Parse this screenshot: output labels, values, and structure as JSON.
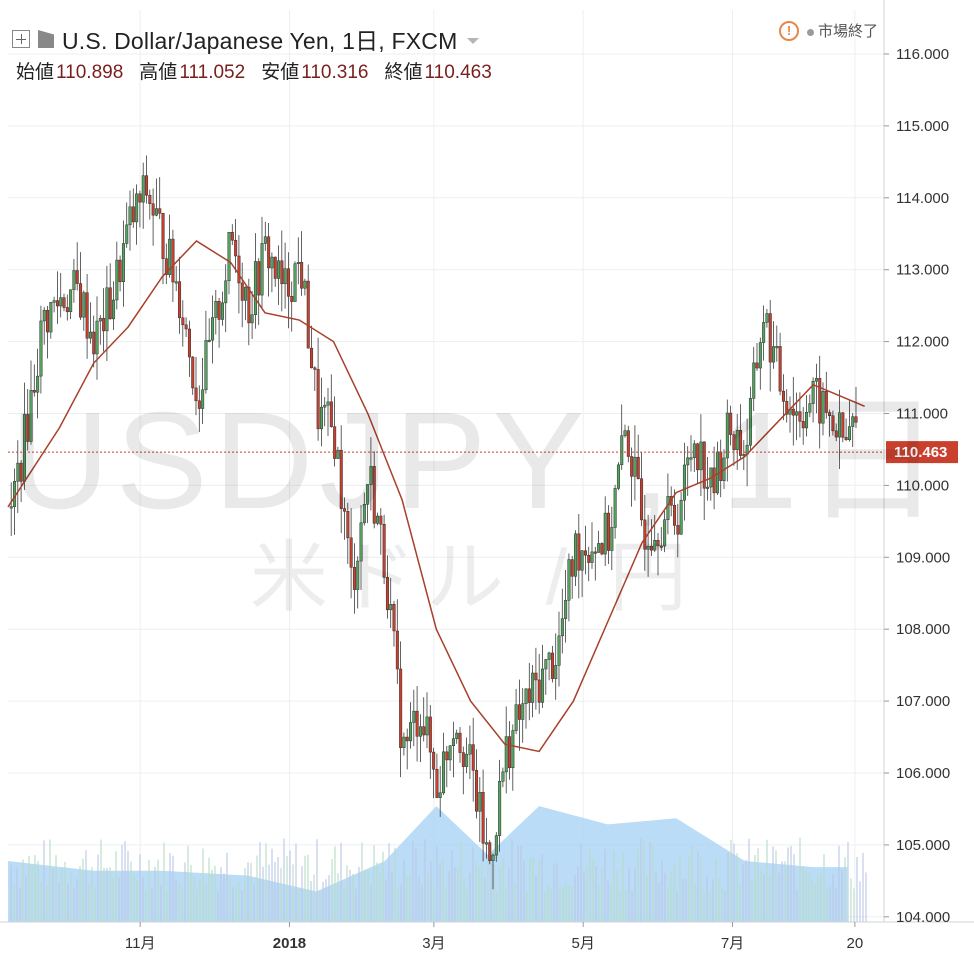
{
  "header": {
    "title": "U.S. Dollar/Japanese Yen, 1日, FXCM",
    "ohlc": [
      {
        "label": "始値",
        "value": "110.898"
      },
      {
        "label": "高値",
        "value": "111.052"
      },
      {
        "label": "安値",
        "value": "110.316"
      },
      {
        "label": "終値",
        "value": "110.463"
      }
    ],
    "status": "市場終了",
    "warn_symbol": "!"
  },
  "watermark": {
    "symbol": "USDJPY , 1日",
    "pair": "米ドル / 円"
  },
  "colors": {
    "up": "#53a35f",
    "down": "#c9402f",
    "ma": "#a8402b",
    "volume_area": "#aed6f5",
    "last_price": "#c9402f"
  },
  "chart_data": {
    "type": "candlestick",
    "y_axis": {
      "ticks": [
        "116.000",
        "115.000",
        "114.000",
        "113.000",
        "112.000",
        "111.000",
        "110.000",
        "109.000",
        "108.000",
        "107.000",
        "106.000",
        "105.000",
        "104.000"
      ],
      "range": [
        104.0,
        116.0
      ],
      "side": "right"
    },
    "x_axis": {
      "ticks": [
        "11月",
        "2018",
        "3月",
        "5月",
        "7月",
        "20"
      ],
      "tick_dates": [
        "2017-11-01",
        "2018-01-01",
        "2018-03-01",
        "2018-05-01",
        "2018-07-01",
        "2018-08-20"
      ],
      "range": [
        "2017-09-08",
        "2018-08-27"
      ]
    },
    "last_price": "110.463",
    "series": [
      {
        "name": "USD/JPY",
        "kind": "ohlc",
        "points": [
          [
            "2017-09-08",
            109.5
          ],
          [
            "2017-09-15",
            110.8
          ],
          [
            "2017-09-22",
            112.3
          ],
          [
            "2017-09-29",
            112.6
          ],
          [
            "2017-10-06",
            112.7
          ],
          [
            "2017-10-13",
            112.0
          ],
          [
            "2017-10-20",
            112.6
          ],
          [
            "2017-10-27",
            113.6
          ],
          [
            "2017-11-03",
            114.1
          ],
          [
            "2017-11-10",
            113.4
          ],
          [
            "2017-11-17",
            112.6
          ],
          [
            "2017-11-24",
            111.2
          ],
          [
            "2017-12-01",
            112.2
          ],
          [
            "2017-12-08",
            113.4
          ],
          [
            "2017-12-15",
            112.5
          ],
          [
            "2017-12-22",
            113.3
          ],
          [
            "2017-12-29",
            112.7
          ],
          [
            "2018-01-05",
            113.1
          ],
          [
            "2018-01-12",
            111.0
          ],
          [
            "2018-01-19",
            110.7
          ],
          [
            "2018-01-26",
            108.6
          ],
          [
            "2018-02-02",
            110.2
          ],
          [
            "2018-02-09",
            108.8
          ],
          [
            "2018-02-16",
            106.3
          ],
          [
            "2018-02-23",
            106.9
          ],
          [
            "2018-03-02",
            105.8
          ],
          [
            "2018-03-09",
            106.8
          ],
          [
            "2018-03-16",
            106.0
          ],
          [
            "2018-03-23",
            104.7
          ],
          [
            "2018-03-30",
            106.3
          ],
          [
            "2018-04-06",
            106.9
          ],
          [
            "2018-04-13",
            107.3
          ],
          [
            "2018-04-20",
            107.7
          ],
          [
            "2018-04-27",
            109.1
          ],
          [
            "2018-05-04",
            109.2
          ],
          [
            "2018-05-11",
            109.3
          ],
          [
            "2018-05-18",
            110.8
          ],
          [
            "2018-05-25",
            109.4
          ],
          [
            "2018-06-01",
            109.5
          ],
          [
            "2018-06-08",
            109.6
          ],
          [
            "2018-06-15",
            110.7
          ],
          [
            "2018-06-22",
            109.9
          ],
          [
            "2018-06-29",
            110.8
          ],
          [
            "2018-07-06",
            110.5
          ],
          [
            "2018-07-13",
            112.4
          ],
          [
            "2018-07-20",
            111.4
          ],
          [
            "2018-07-27",
            111.0
          ],
          [
            "2018-08-03",
            111.2
          ],
          [
            "2018-08-10",
            110.9
          ],
          [
            "2018-08-17",
            110.5
          ]
        ]
      },
      {
        "name": "MA",
        "kind": "line",
        "points": [
          [
            "2017-09-08",
            109.7
          ],
          [
            "2017-09-29",
            110.8
          ],
          [
            "2017-10-13",
            111.7
          ],
          [
            "2017-10-27",
            112.2
          ],
          [
            "2017-11-10",
            112.9
          ],
          [
            "2017-11-24",
            113.4
          ],
          [
            "2017-12-08",
            113.1
          ],
          [
            "2017-12-22",
            112.4
          ],
          [
            "2018-01-05",
            112.3
          ],
          [
            "2018-01-19",
            112.0
          ],
          [
            "2018-02-02",
            111.0
          ],
          [
            "2018-02-16",
            109.8
          ],
          [
            "2018-03-02",
            108.0
          ],
          [
            "2018-03-16",
            107.0
          ],
          [
            "2018-03-30",
            106.4
          ],
          [
            "2018-04-13",
            106.3
          ],
          [
            "2018-04-27",
            107.0
          ],
          [
            "2018-05-11",
            108.1
          ],
          [
            "2018-05-25",
            109.2
          ],
          [
            "2018-06-08",
            109.9
          ],
          [
            "2018-06-22",
            110.1
          ],
          [
            "2018-07-06",
            110.4
          ],
          [
            "2018-07-20",
            110.9
          ],
          [
            "2018-08-03",
            111.4
          ],
          [
            "2018-08-17",
            111.2
          ],
          [
            "2018-08-24",
            111.1
          ]
        ]
      },
      {
        "name": "Volume",
        "kind": "area",
        "points": [
          [
            "2017-09-08",
            0.5
          ],
          [
            "2017-10-13",
            0.42
          ],
          [
            "2017-11-10",
            0.42
          ],
          [
            "2017-12-15",
            0.38
          ],
          [
            "2018-01-12",
            0.25
          ],
          [
            "2018-02-09",
            0.5
          ],
          [
            "2018-03-02",
            0.95
          ],
          [
            "2018-03-23",
            0.55
          ],
          [
            "2018-04-13",
            0.95
          ],
          [
            "2018-05-11",
            0.8
          ],
          [
            "2018-06-08",
            0.85
          ],
          [
            "2018-07-06",
            0.5
          ],
          [
            "2018-08-03",
            0.45
          ],
          [
            "2018-08-17",
            0.45
          ]
        ]
      }
    ]
  }
}
